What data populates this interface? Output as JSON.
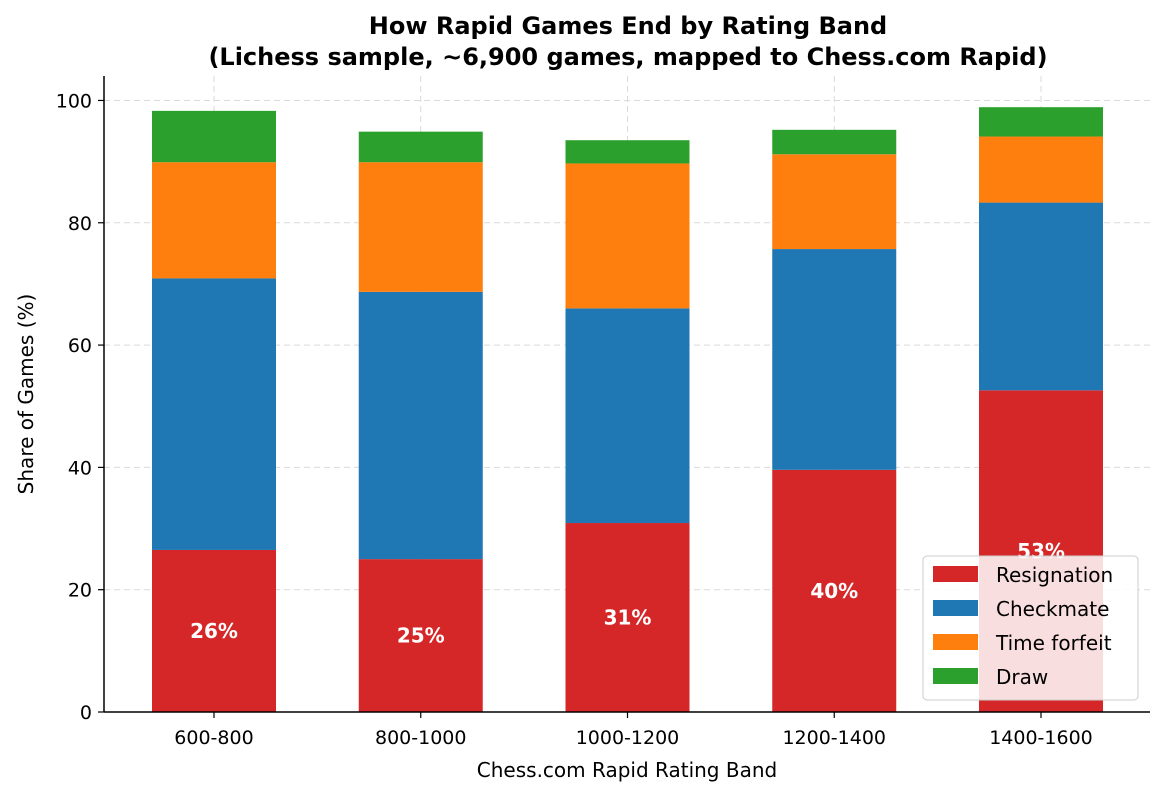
{
  "chart_data": {
    "type": "bar",
    "stacked": true,
    "title": "How Rapid Games End by Rating Band",
    "subtitle": "(Lichess sample, ~6,900 games, mapped to Chess.com Rapid)",
    "xlabel": "Chess.com Rapid Rating Band",
    "ylabel": "Share of Games (%)",
    "ylim": [
      0,
      104
    ],
    "yticks": [
      0,
      20,
      40,
      60,
      80,
      100
    ],
    "grid": true,
    "legend_position": "lower-right",
    "categories": [
      "600-800",
      "800-1000",
      "1000-1200",
      "1200-1400",
      "1400-1600"
    ],
    "series": [
      {
        "name": "Resignation",
        "color": "#d62728",
        "values": [
          26.5,
          25.0,
          30.9,
          39.6,
          52.6
        ]
      },
      {
        "name": "Checkmate",
        "color": "#1f77b4",
        "values": [
          44.4,
          43.7,
          35.1,
          36.1,
          30.7
        ]
      },
      {
        "name": "Time forfeit",
        "color": "#ff7f0e",
        "values": [
          19.0,
          21.2,
          23.7,
          15.5,
          10.8
        ]
      },
      {
        "name": "Draw",
        "color": "#2ca02c",
        "values": [
          8.4,
          5.0,
          3.8,
          4.0,
          4.8
        ]
      }
    ],
    "data_labels": [
      "26%",
      "25%",
      "31%",
      "40%",
      "53%"
    ]
  }
}
